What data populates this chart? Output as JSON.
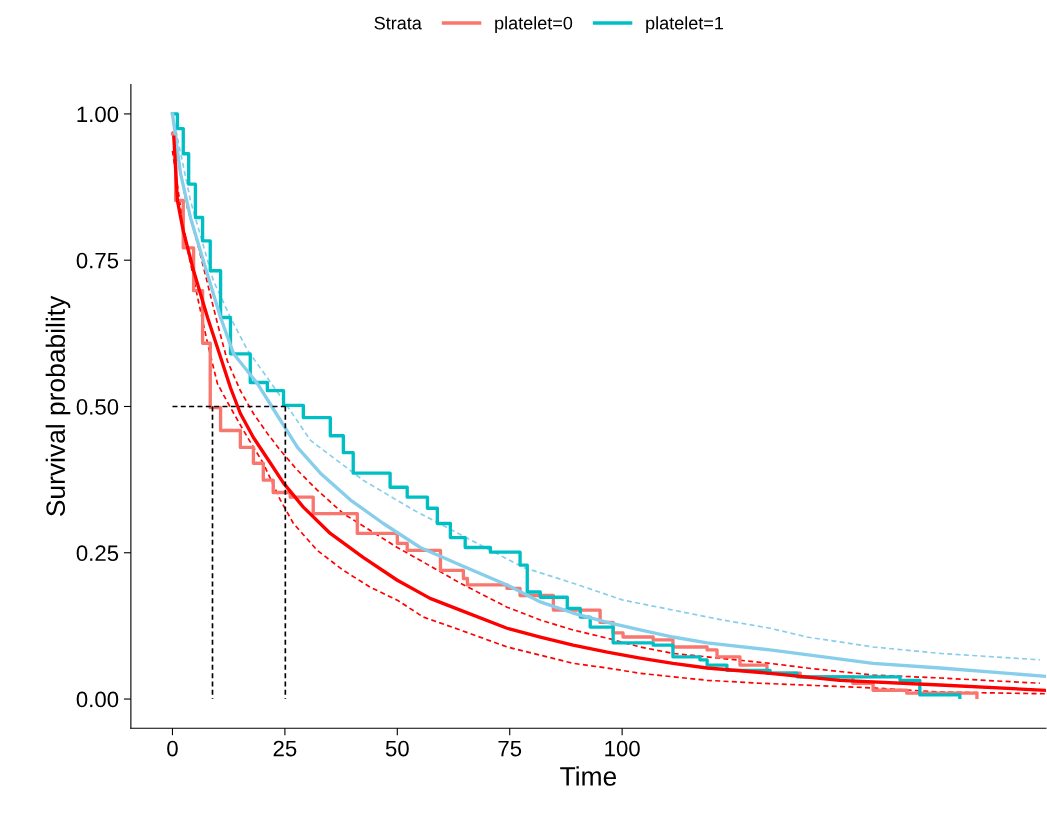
{
  "chart_data": {
    "type": "line",
    "xlabel": "Time",
    "ylabel": "Survival probability",
    "legend_title": "Strata",
    "legend": "top",
    "grid": false,
    "xlim": [
      -9.25,
      194.25
    ],
    "xticks": [
      0,
      25,
      50,
      75,
      100
    ],
    "ylim": [
      -0.05,
      1.05
    ],
    "yticks": [
      {
        "value": 0,
        "label": "0.00"
      },
      {
        "value": 0.25,
        "label": "0.25"
      },
      {
        "value": 0.5,
        "label": "0.50"
      },
      {
        "value": 0.75,
        "label": "0.75"
      },
      {
        "value": 1,
        "label": "1.00"
      }
    ],
    "series": [
      {
        "color": "#ff0000",
        "line_style": "dashed",
        "x": [
          0,
          3.3,
          5.6,
          7.8,
          10.0,
          12.2,
          15.1,
          18.0,
          21.1,
          24.0,
          27.8,
          32.2,
          38.0,
          44.0,
          50.0,
          55.8,
          64.0,
          74.4,
          81.8,
          89.1,
          96.7,
          104.0,
          111.3,
          118.9,
          132.9,
          141.1,
          155.8,
          170.7,
          192.9
        ],
        "values": [
          0.97,
          0.84,
          0.778,
          0.71,
          0.642,
          0.578,
          0.527,
          0.488,
          0.454,
          0.425,
          0.391,
          0.357,
          0.317,
          0.288,
          0.259,
          0.234,
          0.198,
          0.157,
          0.135,
          0.118,
          0.104,
          0.089,
          0.078,
          0.072,
          0.061,
          0.053,
          0.041,
          0.036,
          0.027
        ]
      },
      {
        "color": "#ff0000",
        "line_style": "dashed",
        "x": [
          0,
          1.8,
          3.3,
          5.6,
          7.8,
          10.0,
          12.9,
          16.7,
          20.2,
          24.0,
          26.9,
          32.2,
          38.0,
          44.0,
          50.0,
          55.8,
          64.0,
          74.4,
          81.8,
          89.1,
          96.7,
          104.0,
          111.3,
          118.9,
          130.7,
          155.8,
          170.7,
          194
        ],
        "values": [
          0.937,
          0.84,
          0.771,
          0.686,
          0.608,
          0.539,
          0.498,
          0.447,
          0.403,
          0.34,
          0.3,
          0.254,
          0.22,
          0.191,
          0.169,
          0.14,
          0.118,
          0.089,
          0.075,
          0.061,
          0.053,
          0.044,
          0.038,
          0.032,
          0.027,
          0.019,
          0.012,
          0.009
        ]
      },
      {
        "color": "#87ceeb",
        "line_style": "dashed",
        "x": [
          0,
          4.0,
          9.1,
          12.9,
          16.7,
          21.1,
          24.7,
          30.7,
          42.4,
          53.6,
          78.0,
          89.1,
          100.2,
          111.3,
          122.4,
          132.9,
          141.1,
          155.8,
          170.7,
          192.9
        ],
        "values": [
          1.0,
          0.852,
          0.715,
          0.652,
          0.596,
          0.549,
          0.51,
          0.442,
          0.374,
          0.323,
          0.225,
          0.198,
          0.169,
          0.152,
          0.135,
          0.121,
          0.106,
          0.089,
          0.078,
          0.067
        ]
      },
      {
        "type": "step",
        "name": "platelet=0",
        "color": "#f8766d",
        "x": [
          0,
          0.7,
          2.4,
          4.7,
          6.7,
          8.4,
          10.7,
          15.1,
          18.0,
          20.2,
          22.4,
          26.2,
          31.3,
          38.0,
          41.1,
          50.0,
          52.2,
          59.6,
          64.7,
          65.6,
          74.4,
          77.3,
          84.7,
          95.1,
          98.0,
          100.2,
          106.9,
          111.3,
          118.9,
          121.1,
          126.2,
          132.2,
          139.6,
          151.3,
          155.8,
          163.3,
          178.9
        ],
        "values": [
          0.966,
          0.852,
          0.771,
          0.698,
          0.608,
          0.498,
          0.459,
          0.43,
          0.403,
          0.374,
          0.353,
          0.345,
          0.317,
          0.317,
          0.283,
          0.266,
          0.254,
          0.22,
          0.206,
          0.195,
          0.189,
          0.177,
          0.152,
          0.131,
          0.113,
          0.106,
          0.101,
          0.089,
          0.084,
          0.072,
          0.058,
          0.044,
          0.038,
          0.027,
          0.015,
          0.01,
          0.003
        ]
      },
      {
        "type": "step",
        "name": "platelet=1",
        "color": "#00bfc4",
        "x": [
          0,
          1.1,
          2.4,
          3.6,
          5.1,
          6.7,
          8.4,
          10.7,
          12.9,
          17.3,
          20.2,
          21.1,
          24.7,
          29.1,
          35.1,
          38.0,
          40.2,
          46.9,
          48.4,
          52.2,
          56.7,
          58.9,
          61.8,
          65.1,
          70.7,
          77.3,
          78.9,
          81.8,
          87.8,
          90.7,
          92.9,
          98.0,
          106.9,
          111.3,
          117.3,
          118.9,
          123.3,
          132.9,
          138.9,
          150.7,
          161.8,
          166.2,
          175.1
        ],
        "values": [
          1.0,
          0.975,
          0.932,
          0.88,
          0.823,
          0.783,
          0.732,
          0.652,
          0.59,
          0.541,
          0.541,
          0.527,
          0.502,
          0.481,
          0.45,
          0.421,
          0.386,
          0.386,
          0.362,
          0.345,
          0.326,
          0.3,
          0.276,
          0.259,
          0.251,
          0.229,
          0.183,
          0.174,
          0.155,
          0.14,
          0.123,
          0.096,
          0.092,
          0.072,
          0.067,
          0.058,
          0.049,
          0.044,
          0.038,
          0.038,
          0.032,
          0.007,
          0.003
        ]
      },
      {
        "color": "#87ceeb",
        "x": [
          0,
          1.8,
          4.0,
          6.2,
          8.4,
          10.7,
          13.6,
          18.9,
          23.3,
          27.8,
          32.9,
          39.6,
          46.9,
          55.1,
          64.0,
          74.4,
          81.8,
          89.1,
          96.7,
          104.0,
          111.3,
          118.9,
          132.9,
          155.8,
          170.7,
          194
        ],
        "values": [
          1.0,
          0.898,
          0.823,
          0.766,
          0.71,
          0.652,
          0.59,
          0.539,
          0.485,
          0.43,
          0.386,
          0.34,
          0.3,
          0.259,
          0.229,
          0.195,
          0.166,
          0.147,
          0.131,
          0.118,
          0.106,
          0.096,
          0.084,
          0.061,
          0.053,
          0.039
        ]
      },
      {
        "color": "#ff0000",
        "x": [
          0.3,
          1.1,
          2.4,
          4.7,
          7.8,
          10.7,
          12.9,
          15.1,
          18.0,
          21.8,
          24.7,
          29.1,
          35.1,
          42.4,
          50.0,
          57.3,
          64.0,
          74.4,
          81.8,
          89.1,
          96.7,
          104.0,
          111.3,
          118.9,
          132.9,
          148.4,
          170.7,
          194
        ],
        "values": [
          0.96,
          0.852,
          0.8,
          0.732,
          0.652,
          0.584,
          0.532,
          0.488,
          0.447,
          0.403,
          0.369,
          0.328,
          0.283,
          0.242,
          0.203,
          0.172,
          0.152,
          0.121,
          0.106,
          0.092,
          0.08,
          0.07,
          0.061,
          0.053,
          0.044,
          0.032,
          0.024,
          0.015
        ]
      },
      {
        "color": "#000000",
        "line_style": "dashed",
        "x": [
          0,
          25.1
        ],
        "values": [
          0.5,
          0.5
        ]
      },
      {
        "color": "#000000",
        "line_style": "dashed",
        "x": [
          8.9,
          8.9
        ],
        "values": [
          0.5,
          0
        ]
      },
      {
        "color": "#000000",
        "line_style": "dashed",
        "x": [
          25.1,
          25.1
        ],
        "values": [
          0.5,
          0
        ]
      }
    ]
  }
}
